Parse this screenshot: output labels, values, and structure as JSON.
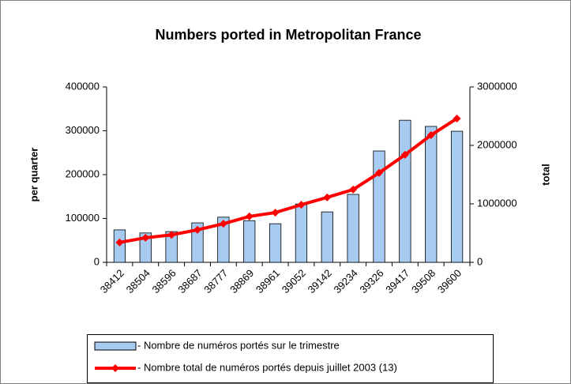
{
  "chart_data": {
    "type": "bar_line",
    "title": "Numbers ported in Metropolitan France",
    "y_label": "per quarter",
    "y2_label": "total",
    "categories": [
      "38412",
      "38504",
      "38596",
      "38687",
      "38777",
      "38869",
      "38961",
      "39052",
      "39142",
      "39234",
      "39326",
      "39417",
      "39508",
      "39600"
    ],
    "series": [
      {
        "name": "- Nombre de numéros portés sur le trimestre",
        "type": "bar",
        "color": "#a6caf0",
        "values": [
          74000,
          67000,
          70000,
          90000,
          103000,
          95000,
          88000,
          133000,
          115000,
          155000,
          254000,
          324000,
          310000,
          299000
        ]
      },
      {
        "name": "- Nombre total de numéros portés depuis juillet 2003 (13)",
        "type": "line",
        "axis": "y2",
        "color": "#ff0000",
        "values": [
          340000,
          420000,
          470000,
          555000,
          660000,
          785000,
          850000,
          985000,
          1110000,
          1245000,
          1530000,
          1840000,
          2175000,
          2460000
        ]
      }
    ],
    "ylim": [
      0,
      400000
    ],
    "yticks": [
      0,
      100000,
      200000,
      300000,
      400000
    ],
    "y2lim": [
      0,
      3000000
    ],
    "y2ticks": [
      0,
      1000000,
      2000000,
      3000000
    ],
    "legend": "bottom",
    "grid": false
  }
}
